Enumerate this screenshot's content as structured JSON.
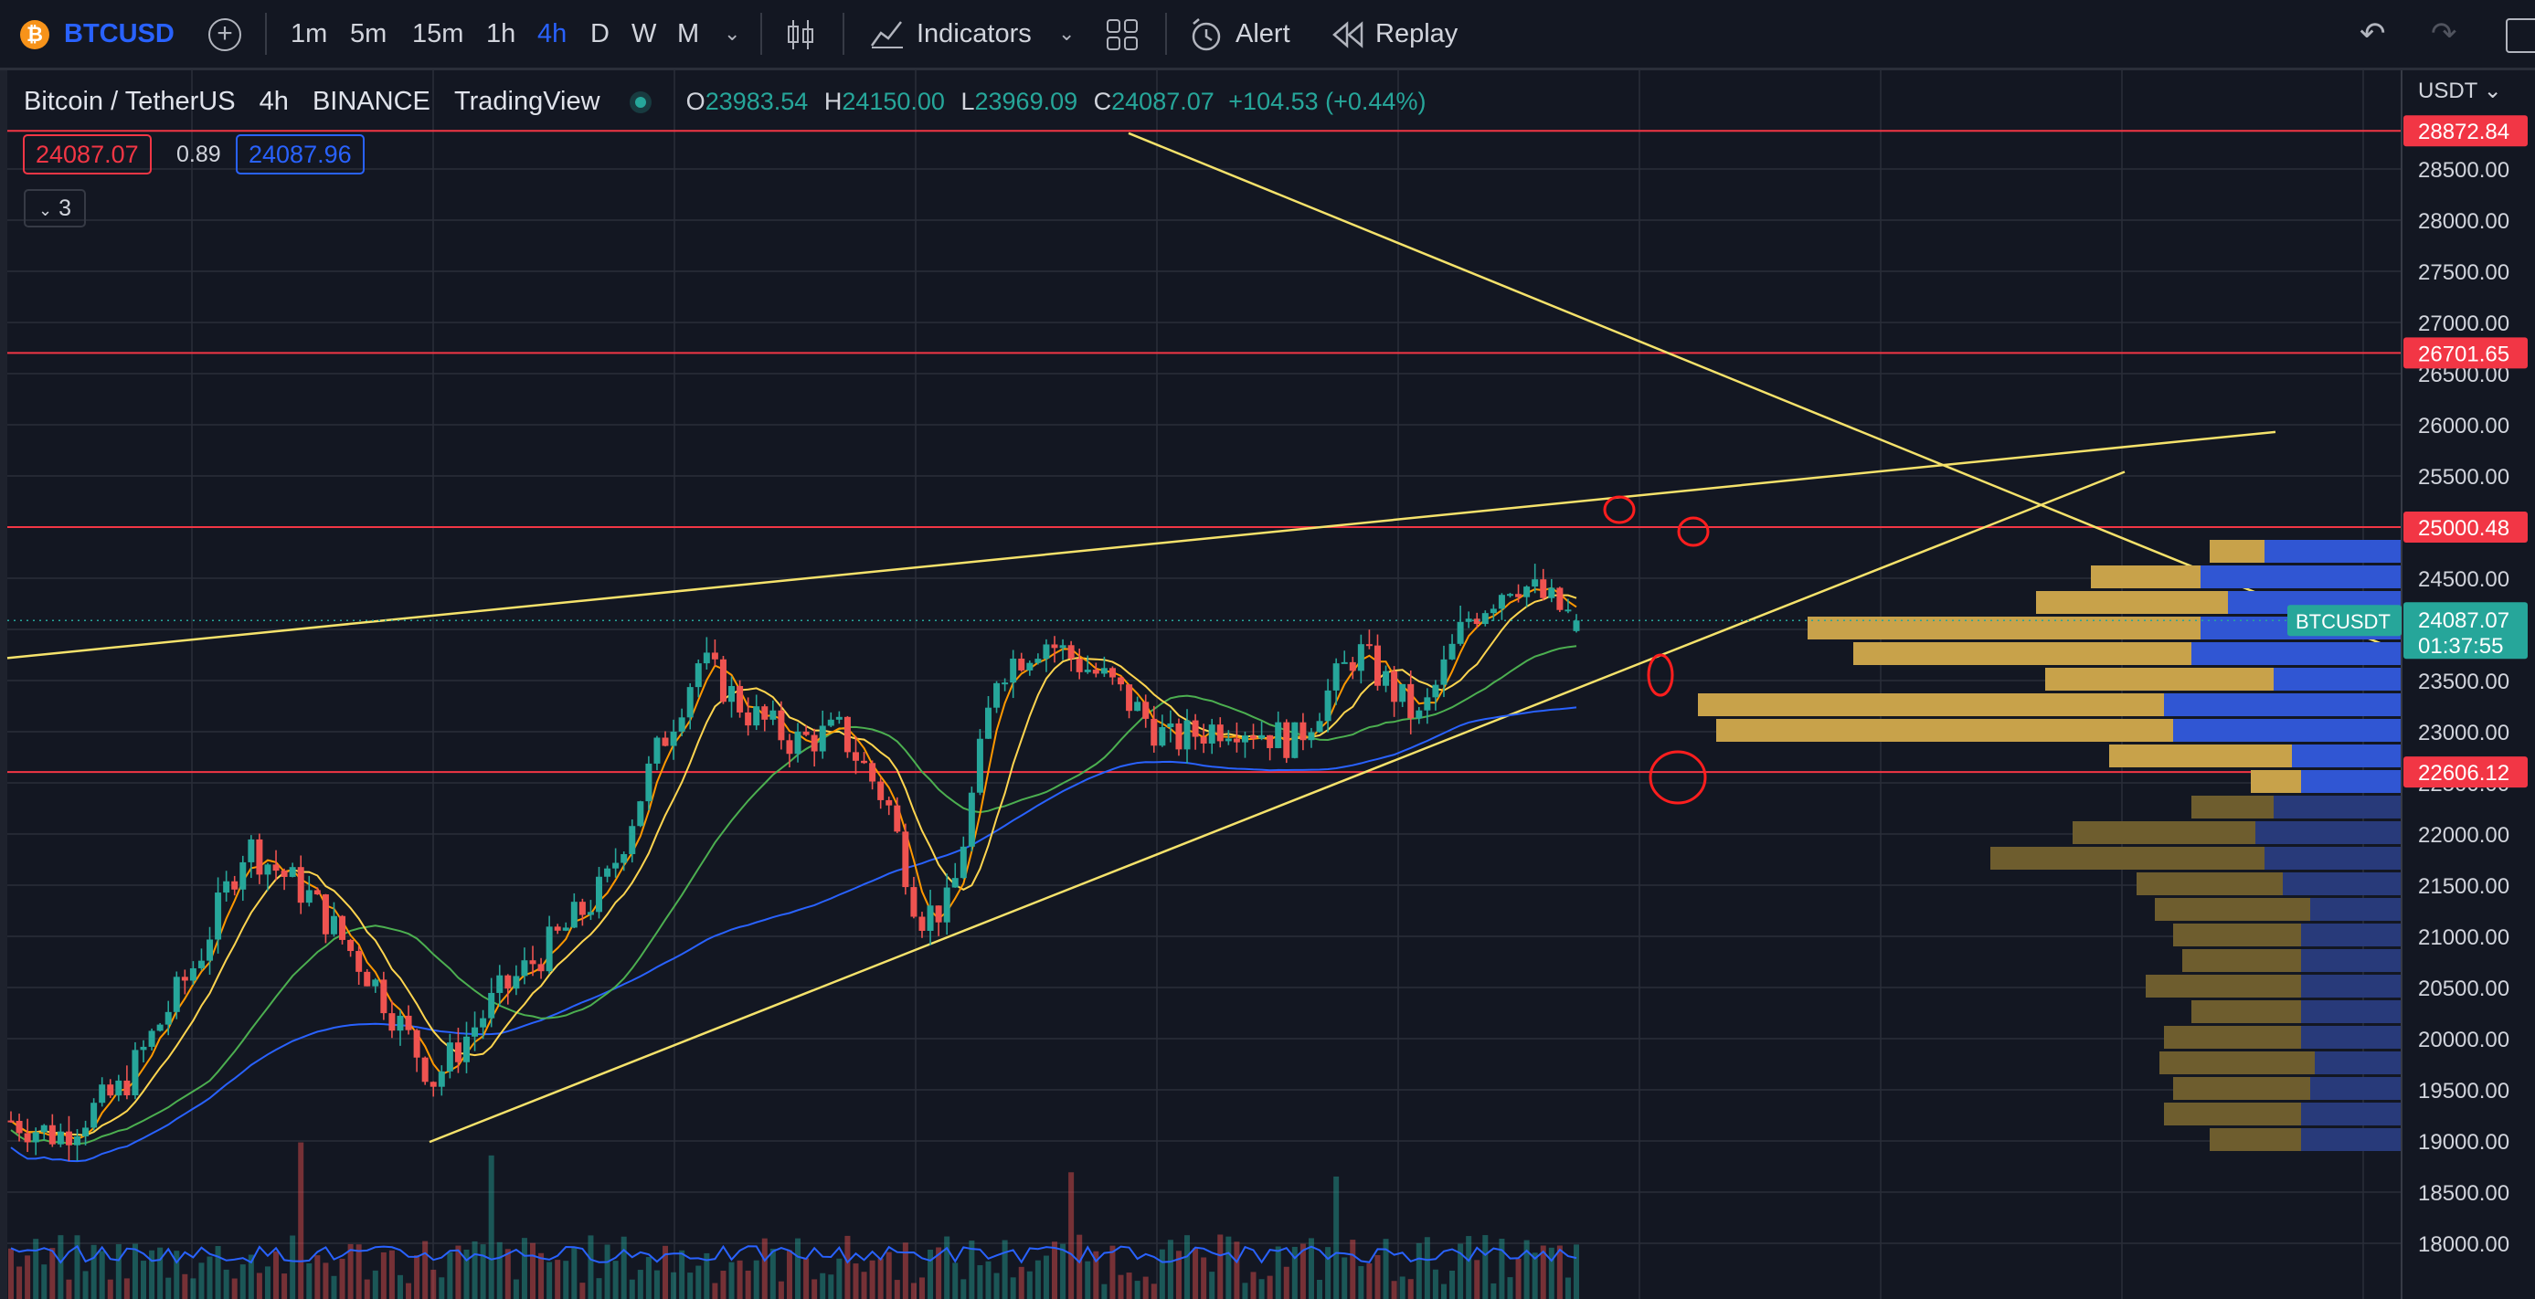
{
  "toolbar": {
    "symbol": "BTCUSD",
    "symbol_icon": "bitcoin-icon",
    "add_icon": "plus-circle-icon",
    "intervals": [
      "1m",
      "5m",
      "15m",
      "1h",
      "4h",
      "D",
      "W",
      "M"
    ],
    "active_interval": "4h",
    "chart_type_icon": "candles-icon",
    "indicators_label": "Indicators",
    "layout_icon": "grid-icon",
    "alert_label": "Alert",
    "replay_label": "Replay",
    "undo_icon": "undo-icon",
    "redo_icon": "redo-icon"
  },
  "legend": {
    "title": "Bitcoin / TetherUS",
    "interval": "4h",
    "exchange": "BINANCE",
    "source": "TradingView",
    "ohlc": [
      {
        "label": "O",
        "value": "23983.54"
      },
      {
        "label": "H",
        "value": "24150.00"
      },
      {
        "label": "L",
        "value": "23969.09"
      },
      {
        "label": "C",
        "value": "24087.07"
      }
    ],
    "change": "+104.53 (+0.44%)",
    "bid": "24087.07",
    "spread": "0.89",
    "ask": "24087.96",
    "indicator_count": "3"
  },
  "price_axis": {
    "currency": "USDT",
    "ticks": [
      "28500.00",
      "28000.00",
      "27500.00",
      "27000.00",
      "26500.00",
      "26000.00",
      "25500.00",
      "25000.00",
      "24500.00",
      "23500.00",
      "23000.00",
      "22500.00",
      "22000.00",
      "21500.00",
      "21000.00",
      "20500.00",
      "20000.00",
      "19500.00",
      "19000.00",
      "18500.00",
      "18000.00"
    ],
    "labels": [
      {
        "value": "28872.84",
        "color": "#f23645"
      },
      {
        "value": "26701.65",
        "color": "#f23645"
      },
      {
        "value": "25000.48",
        "color": "#f23645"
      },
      {
        "value": "22606.12",
        "color": "#f23645"
      }
    ],
    "last_price": "24087.07",
    "countdown": "01:37:55",
    "symbol_tag": "BTCUSDT"
  },
  "colors": {
    "background": "#131722",
    "grid": "#2a2e39",
    "up": "#26a69a",
    "down": "#ef5350",
    "hline": "#f23645",
    "trendline": "#f5e26b",
    "ma_blue": "#2962ff",
    "ma_green": "#4caf50",
    "ma_yellow": "#ffd54f",
    "ma_orange": "#ff9800",
    "vp_up": "#c8a24a",
    "vp_down": "#3056d3"
  },
  "chart_data": {
    "type": "candlestick",
    "symbol": "BTCUSDT",
    "interval": "4h",
    "ylim": [
      17900,
      28960
    ],
    "horizontal_levels": [
      28872.84,
      26701.65,
      25000.48,
      22606.12
    ],
    "last": {
      "open": 23983.54,
      "high": 24150.0,
      "low": 23969.09,
      "close": 24087.07
    },
    "trend": [
      {
        "t": 0,
        "p": 19200
      },
      {
        "t": 0.03,
        "p": 19050
      },
      {
        "t": 0.07,
        "p": 19500
      },
      {
        "t": 0.12,
        "p": 20800
      },
      {
        "t": 0.15,
        "p": 21900
      },
      {
        "t": 0.19,
        "p": 21400
      },
      {
        "t": 0.23,
        "p": 20600
      },
      {
        "t": 0.27,
        "p": 19600
      },
      {
        "t": 0.31,
        "p": 20400
      },
      {
        "t": 0.35,
        "p": 21000
      },
      {
        "t": 0.38,
        "p": 21500
      },
      {
        "t": 0.41,
        "p": 22700
      },
      {
        "t": 0.44,
        "p": 23700
      },
      {
        "t": 0.47,
        "p": 23200
      },
      {
        "t": 0.5,
        "p": 22900
      },
      {
        "t": 0.53,
        "p": 23000
      },
      {
        "t": 0.56,
        "p": 22300
      },
      {
        "t": 0.58,
        "p": 21200
      },
      {
        "t": 0.6,
        "p": 21300
      },
      {
        "t": 0.63,
        "p": 23600
      },
      {
        "t": 0.66,
        "p": 23900
      },
      {
        "t": 0.7,
        "p": 23500
      },
      {
        "t": 0.74,
        "p": 22900
      },
      {
        "t": 0.78,
        "p": 23100
      },
      {
        "t": 0.82,
        "p": 22900
      },
      {
        "t": 0.86,
        "p": 23800
      },
      {
        "t": 0.9,
        "p": 23100
      },
      {
        "t": 0.93,
        "p": 24100
      },
      {
        "t": 0.96,
        "p": 24500
      },
      {
        "t": 1,
        "p": 24087
      }
    ]
  }
}
